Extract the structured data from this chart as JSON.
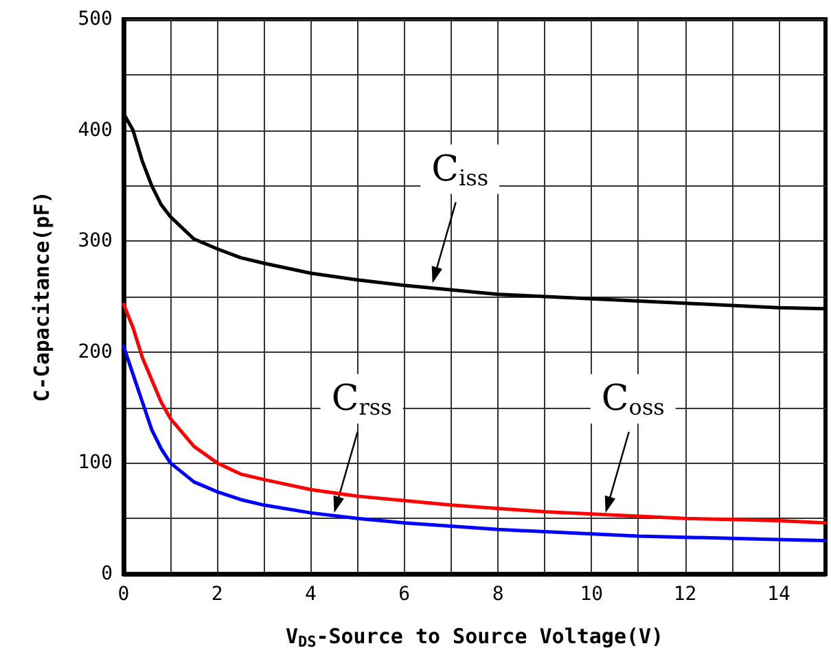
{
  "chart_data": {
    "type": "line",
    "xlabel": "V$_{DS}$-Source to Source Voltage(V)",
    "ylabel": "C-Capacitance(pF)",
    "xlim": [
      0,
      15
    ],
    "ylim": [
      0,
      500
    ],
    "xticks": [
      0,
      {
        "value": 1,
        "label": null
      },
      2,
      {
        "value": 3,
        "label": null
      },
      4,
      {
        "value": 5,
        "label": null
      },
      6,
      {
        "value": 7,
        "label": null
      },
      8,
      {
        "value": 9,
        "label": null
      },
      10,
      {
        "value": 11,
        "label": null
      },
      12,
      {
        "value": 13,
        "label": null
      },
      14
    ],
    "yticks": [
      0,
      {
        "value": 50,
        "label": null
      },
      100,
      {
        "value": 150,
        "label": null
      },
      200,
      {
        "value": 250,
        "label": null
      },
      300,
      {
        "value": 350,
        "label": null
      },
      400,
      {
        "value": 450,
        "label": null
      },
      500
    ],
    "grid": true,
    "marker": "none",
    "line_style": "solid",
    "x": [
      0,
      0.2,
      0.4,
      0.6,
      0.8,
      1,
      1.5,
      2,
      2.5,
      3,
      4,
      5,
      6,
      7,
      8,
      9,
      10,
      11,
      12,
      13,
      14,
      15
    ],
    "series": [
      {
        "color": "#000000",
        "values": [
          415,
          400,
          372,
          350,
          333,
          322,
          302,
          293,
          285,
          280,
          271,
          265,
          260,
          256,
          252,
          250,
          248,
          246,
          244,
          242,
          240,
          239
        ]
      },
      {
        "color": "#ff0000",
        "values": [
          243,
          222,
          195,
          175,
          155,
          140,
          115,
          100,
          90,
          85,
          76,
          70,
          66,
          62,
          59,
          56,
          54,
          52,
          50,
          49,
          48,
          46
        ]
      },
      {
        "color": "#0000ff",
        "values": [
          205,
          180,
          155,
          130,
          113,
          100,
          83,
          74,
          67,
          62,
          55,
          50,
          46,
          43,
          40,
          38,
          36,
          34,
          33,
          32,
          31,
          30
        ]
      }
    ],
    "annotations": [
      {
        "text": "C$_{iss}$",
        "x": 6.6,
        "y": 262
      },
      {
        "text": "C$_{rss}$",
        "x": 4.5,
        "y": 55
      },
      {
        "text": "C$_{oss}$",
        "x": 10.3,
        "y": 55
      }
    ]
  }
}
